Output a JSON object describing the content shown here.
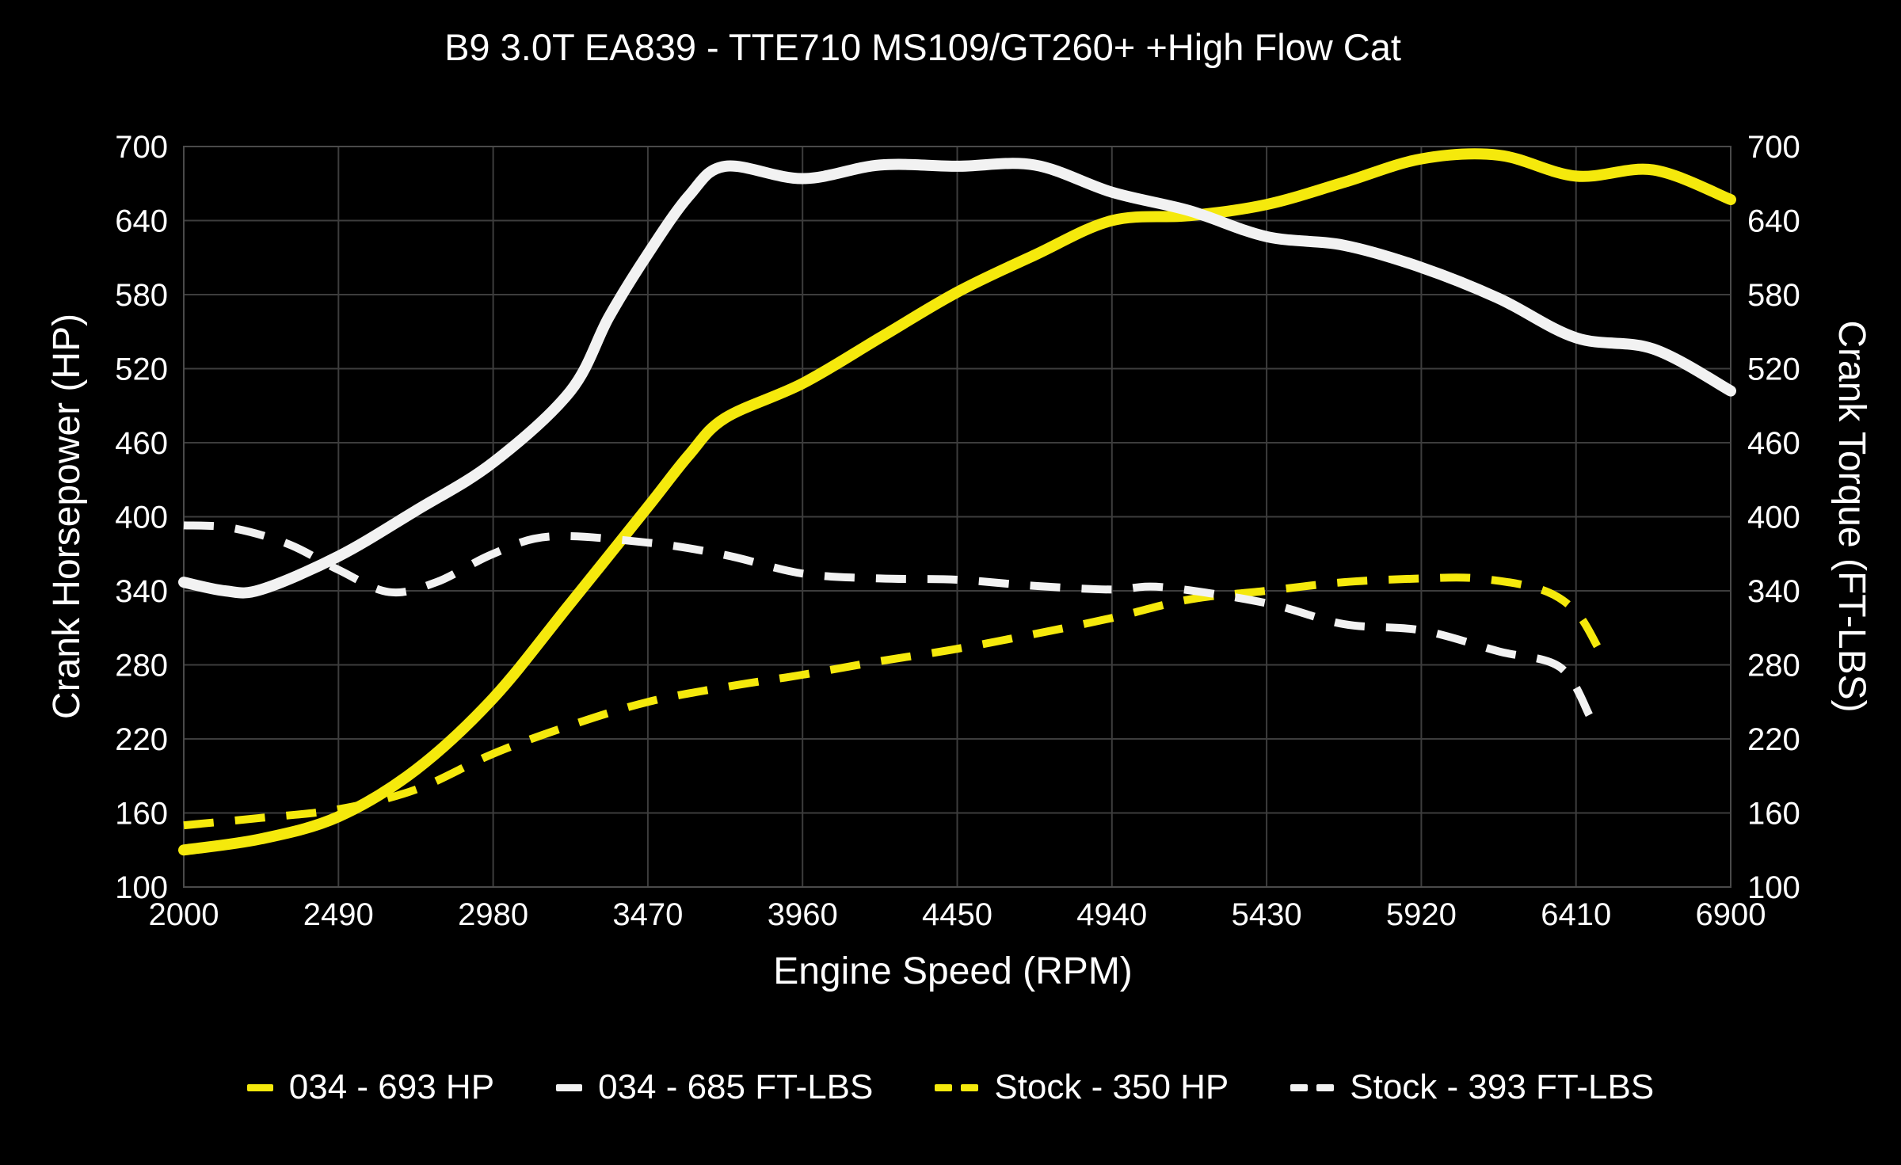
{
  "title": "B9 3.0T EA839 - TTE710 MS109/GT260+ +High Flow Cat",
  "colors": {
    "background": "#000000",
    "grid": "#3d3d3d",
    "border": "#4a4a4a",
    "text": "#ffffff",
    "yellow": "#f5e90c",
    "white": "#f2f2f2"
  },
  "chart_data": {
    "type": "line",
    "title": "B9 3.0T EA839 - TTE710 MS109/GT260+ +High Flow Cat",
    "xlabel": "Engine Speed (RPM)",
    "ylabel_left": "Crank Horsepower (HP)",
    "ylabel_right": "Crank Torque (FT-LBS)",
    "xlim": [
      2000,
      6900
    ],
    "ylim": [
      100,
      700
    ],
    "x_ticks": [
      2000,
      2490,
      2980,
      3470,
      3960,
      4450,
      4940,
      5430,
      5920,
      6410,
      6900
    ],
    "y_ticks": [
      100,
      160,
      220,
      280,
      340,
      400,
      460,
      520,
      580,
      640,
      700
    ],
    "grid": true,
    "legend_position": "bottom",
    "series": [
      {
        "name": "034 - 693 HP",
        "color": "yellow",
        "style": "solid",
        "axis": "left-hp",
        "peak": 693,
        "points": [
          [
            2000,
            130
          ],
          [
            2245,
            139
          ],
          [
            2490,
            157
          ],
          [
            2735,
            195
          ],
          [
            2980,
            253
          ],
          [
            3225,
            330
          ],
          [
            3470,
            408
          ],
          [
            3600,
            450
          ],
          [
            3715,
            480
          ],
          [
            3960,
            508
          ],
          [
            4205,
            545
          ],
          [
            4450,
            582
          ],
          [
            4695,
            612
          ],
          [
            4940,
            640
          ],
          [
            5185,
            644
          ],
          [
            5430,
            653
          ],
          [
            5675,
            671
          ],
          [
            5920,
            690
          ],
          [
            6165,
            693
          ],
          [
            6410,
            676
          ],
          [
            6655,
            681
          ],
          [
            6900,
            657
          ]
        ]
      },
      {
        "name": "034 - 685 FT-LBS",
        "color": "white",
        "style": "solid",
        "axis": "right-torque",
        "peak": 685,
        "points": [
          [
            2000,
            347
          ],
          [
            2130,
            340
          ],
          [
            2245,
            341
          ],
          [
            2490,
            368
          ],
          [
            2735,
            405
          ],
          [
            2980,
            444
          ],
          [
            3225,
            502
          ],
          [
            3347,
            562
          ],
          [
            3470,
            613
          ],
          [
            3600,
            660
          ],
          [
            3715,
            684
          ],
          [
            3960,
            674
          ],
          [
            4205,
            685
          ],
          [
            4450,
            684
          ],
          [
            4695,
            685
          ],
          [
            4940,
            663
          ],
          [
            5185,
            648
          ],
          [
            5430,
            627
          ],
          [
            5675,
            620
          ],
          [
            5920,
            602
          ],
          [
            6165,
            577
          ],
          [
            6410,
            545
          ],
          [
            6655,
            536
          ],
          [
            6900,
            502
          ]
        ]
      },
      {
        "name": "Stock - 350 HP",
        "color": "yellow",
        "style": "dashed",
        "axis": "left-hp",
        "peak": 350,
        "points": [
          [
            2000,
            150
          ],
          [
            2245,
            156
          ],
          [
            2490,
            163
          ],
          [
            2735,
            179
          ],
          [
            2980,
            208
          ],
          [
            3225,
            231
          ],
          [
            3470,
            250
          ],
          [
            3715,
            262
          ],
          [
            3960,
            272
          ],
          [
            4205,
            283
          ],
          [
            4450,
            293
          ],
          [
            4695,
            305
          ],
          [
            4940,
            318
          ],
          [
            5185,
            333
          ],
          [
            5430,
            340
          ],
          [
            5675,
            347
          ],
          [
            5920,
            350
          ],
          [
            6100,
            350
          ],
          [
            6300,
            341
          ],
          [
            6410,
            323
          ],
          [
            6480,
            294
          ]
        ]
      },
      {
        "name": "Stock - 393 FT-LBS",
        "color": "white",
        "style": "dashed",
        "axis": "right-torque",
        "peak": 393,
        "points": [
          [
            2000,
            393
          ],
          [
            2150,
            391
          ],
          [
            2330,
            378
          ],
          [
            2490,
            357
          ],
          [
            2650,
            339
          ],
          [
            2800,
            347
          ],
          [
            2980,
            370
          ],
          [
            3160,
            384
          ],
          [
            3470,
            379
          ],
          [
            3715,
            369
          ],
          [
            3960,
            354
          ],
          [
            4205,
            350
          ],
          [
            4450,
            349
          ],
          [
            4695,
            344
          ],
          [
            4940,
            341
          ],
          [
            5100,
            343
          ],
          [
            5430,
            330
          ],
          [
            5675,
            313
          ],
          [
            5920,
            308
          ],
          [
            6165,
            291
          ],
          [
            6360,
            278
          ],
          [
            6455,
            238
          ]
        ]
      }
    ]
  },
  "legend": {
    "item1": "034 - 693 HP",
    "item2": "034 - 685 FT-LBS",
    "item3": "Stock - 350 HP",
    "item4": "Stock - 393 FT-LBS"
  }
}
